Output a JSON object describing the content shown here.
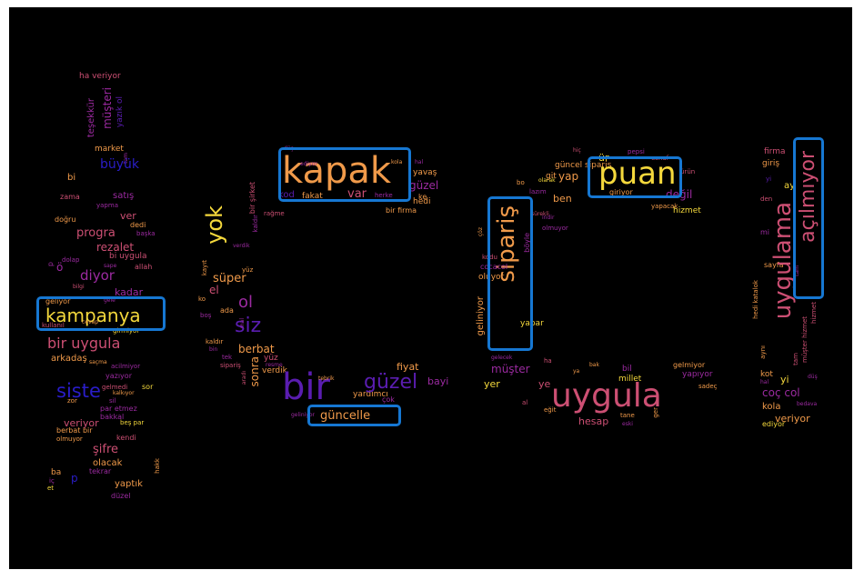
{
  "palette": {
    "background": "#000000",
    "highlight": "#1677d2",
    "yellow": "#f4d83c",
    "orange": "#f09a4a",
    "pink": "#cc4f73",
    "magenta": "#9b2aa0",
    "purple": "#5a1db0",
    "blue": "#2a1dc8"
  },
  "highlighted_words": [
    "kapak",
    "puan",
    "sipariş",
    "açılmıyor",
    "kampanya",
    "güncelle"
  ],
  "words": [
    {
      "text": "bir",
      "color": "#5a1db0"
    },
    {
      "text": "uygula",
      "color": "#cc4f73"
    },
    {
      "text": "kapak",
      "color": "#f09a4a"
    },
    {
      "text": "puan",
      "color": "#f4d83c"
    },
    {
      "text": "uygulama",
      "color": "#cc4f73"
    },
    {
      "text": "sipariş",
      "color": "#f09a4a"
    },
    {
      "text": "açılmıyor",
      "color": "#cc4f73"
    },
    {
      "text": "kampanya",
      "color": "#f4d83c"
    },
    {
      "text": "güzel",
      "color": "#5a1db0"
    },
    {
      "text": "yok",
      "color": "#f4d83c"
    },
    {
      "text": "siz",
      "color": "#5a1db0"
    },
    {
      "text": "siste",
      "color": "#2a1dc8"
    },
    {
      "text": "bir uygula",
      "color": "#cc4f73"
    },
    {
      "text": "güncelle",
      "color": "#f09a4a"
    },
    {
      "text": "ol",
      "color": "#9b2aa0"
    },
    {
      "text": "diyor",
      "color": "#9b2aa0"
    },
    {
      "text": "var",
      "color": "#cc4f73"
    },
    {
      "text": "ür",
      "color": "#f4d83c"
    },
    {
      "text": "yap",
      "color": "#f09a4a"
    },
    {
      "text": "ben",
      "color": "#f09a4a"
    },
    {
      "text": "müşter",
      "color": "#9b2aa0"
    },
    {
      "text": "müşteri",
      "color": "#9b2aa0"
    },
    {
      "text": "değil",
      "color": "#9b2aa0"
    },
    {
      "text": "hesap",
      "color": "#cc4f73"
    },
    {
      "text": "fiyat",
      "color": "#f09a4a"
    },
    {
      "text": "coç col",
      "color": "#9b2aa0"
    },
    {
      "text": "veriyor",
      "color": "#f09a4a"
    },
    {
      "text": "şifre",
      "color": "#cc4f73"
    },
    {
      "text": "kadar",
      "color": "#9b2aa0"
    },
    {
      "text": "rezalet",
      "color": "#cc4f73"
    },
    {
      "text": "progra",
      "color": "#cc4f73"
    },
    {
      "text": "süper",
      "color": "#f09a4a"
    },
    {
      "text": "sonra",
      "color": "#f09a4a"
    },
    {
      "text": "berbat",
      "color": "#f09a4a"
    },
    {
      "text": "el",
      "color": "#cc4f73"
    },
    {
      "text": "yer",
      "color": "#f4d83c"
    },
    {
      "text": "ye",
      "color": "#cc4f73"
    },
    {
      "text": "bayi",
      "color": "#9b2aa0"
    },
    {
      "text": "kod",
      "color": "#5a1db0"
    },
    {
      "text": "fakat",
      "color": "#f09a4a"
    },
    {
      "text": "bir firma",
      "color": "#f09a4a"
    },
    {
      "text": "hedi",
      "color": "#f09a4a"
    },
    {
      "text": "rağme",
      "color": "#f09a4a"
    },
    {
      "text": "yavaş",
      "color": "#f09a4a"
    },
    {
      "text": "ke",
      "color": "#9b2aa0"
    },
    {
      "text": "herke",
      "color": "#cc4f73"
    },
    {
      "text": "bir şirket",
      "color": "#cc4f73"
    },
    {
      "text": "ha veriyor",
      "color": "#9b2aa0"
    },
    {
      "text": "teşekkür",
      "color": "#cc4f73"
    },
    {
      "text": "yazık ol",
      "color": "#9b2aa0"
    },
    {
      "text": "market",
      "color": "#5a1db0"
    },
    {
      "text": "büyük",
      "color": "#f09a4a"
    },
    {
      "text": "bi",
      "color": "#2a1dc8"
    },
    {
      "text": "zama",
      "color": "#f09a4a"
    },
    {
      "text": "satış",
      "color": "#cc4f73"
    },
    {
      "text": "yapma",
      "color": "#9b2aa0"
    },
    {
      "text": "ver",
      "color": "#cc4f73"
    },
    {
      "text": "doğru",
      "color": "#f09a4a"
    },
    {
      "text": "dedi",
      "color": "#f09a4a"
    },
    {
      "text": "başka",
      "color": "#9b2aa0"
    },
    {
      "text": "bi uygula",
      "color": "#cc4f73"
    },
    {
      "text": "allah",
      "color": "#cc4f73"
    },
    {
      "text": "ö",
      "color": "#9b2aa0"
    },
    {
      "text": "geliyor",
      "color": "#f09a4a"
    },
    {
      "text": "arkadaş",
      "color": "#f09a4a"
    },
    {
      "text": "yazıyor",
      "color": "#9b2aa0"
    },
    {
      "text": "lütfe",
      "color": "#cc4f73"
    },
    {
      "text": "olacak",
      "color": "#f09a4a"
    },
    {
      "text": "yaptık",
      "color": "#f09a4a"
    },
    {
      "text": "düzel",
      "color": "#9b2aa0"
    },
    {
      "text": "kendi",
      "color": "#cc4f73"
    },
    {
      "text": "tekrar",
      "color": "#9b2aa0"
    },
    {
      "text": "beş par",
      "color": "#f4d83c"
    },
    {
      "text": "kullanıl",
      "color": "#cc4f73"
    },
    {
      "text": "acilmiyor",
      "color": "#9b2aa0"
    },
    {
      "text": "kalkıyor",
      "color": "#f09a4a"
    },
    {
      "text": "sil",
      "color": "#9b2aa0"
    },
    {
      "text": "sor",
      "color": "#f4d83c"
    },
    {
      "text": "zor",
      "color": "#f09a4a"
    },
    {
      "text": "par etmez",
      "color": "#9b2aa0"
    },
    {
      "text": "bakkal",
      "color": "#9b2aa0"
    },
    {
      "text": "berbat bir",
      "color": "#f09a4a"
    },
    {
      "text": "olmuyor",
      "color": "#f09a4a"
    },
    {
      "text": "hakk",
      "color": "#f09a4a"
    },
    {
      "text": "ba",
      "color": "#f09a4a"
    },
    {
      "text": "iç",
      "color": "#9b2aa0"
    },
    {
      "text": "et",
      "color": "#f4d83c"
    },
    {
      "text": "p",
      "color": "#2a1dc8"
    },
    {
      "text": "dolap",
      "color": "#9b2aa0"
    },
    {
      "text": "bilgi",
      "color": "#9b2aa0"
    },
    {
      "text": "gelmedi",
      "color": "#9b2aa0"
    },
    {
      "text": "saçma",
      "color": "#9b2aa0"
    },
    {
      "text": "cevap",
      "color": "#cc4f73"
    },
    {
      "text": "sape",
      "color": "#9b2aa0"
    },
    {
      "text": "gele",
      "color": "#f09a4a"
    },
    {
      "text": "girmiyor",
      "color": "#9b2aa0"
    },
    {
      "text": "geç",
      "color": "#f4d83c"
    },
    {
      "text": "dünya",
      "color": "#f09a4a"
    },
    {
      "text": "kayıt",
      "color": "#f09a4a"
    },
    {
      "text": "ko",
      "color": "#9b2aa0"
    },
    {
      "text": "boş",
      "color": "#f09a4a"
    },
    {
      "text": "ada",
      "color": "#f09a4a"
    },
    {
      "text": "kaldır",
      "color": "#9b2aa0"
    },
    {
      "text": "bin",
      "color": "#cc4f73"
    },
    {
      "text": "sipariş",
      "color": "#9b2aa0"
    },
    {
      "text": "tek",
      "color": "#cc4f73"
    },
    {
      "text": "yüz",
      "color": "#f09a4a"
    },
    {
      "text": "verdik",
      "color": "#f09a4a"
    },
    {
      "text": "mal",
      "color": "#9b2aa0"
    },
    {
      "text": "resme",
      "color": "#9b2aa0"
    },
    {
      "text": "aradı",
      "color": "#9b2aa0"
    },
    {
      "text": "tebrik",
      "color": "#cc4f73"
    },
    {
      "text": "yardımcı",
      "color": "#f09a4a"
    },
    {
      "text": "çok",
      "color": "#f09a4a"
    },
    {
      "text": "geliniyor",
      "color": "#9b2aa0"
    },
    {
      "text": "oluyor",
      "color": "#9b2aa0"
    },
    {
      "text": "cocacol",
      "color": "#f09a4a"
    },
    {
      "text": "kodu",
      "color": "#f09a4a"
    },
    {
      "text": "çöz",
      "color": "#9b2aa0"
    },
    {
      "text": "yapar",
      "color": "#cc4f73"
    },
    {
      "text": "böyle",
      "color": "#f09a4a"
    },
    {
      "text": "bo",
      "color": "#f4d83c"
    },
    {
      "text": "güncel siparis",
      "color": "#9b2aa0"
    },
    {
      "text": "git",
      "color": "#f09a4a"
    },
    {
      "text": "olarak",
      "color": "#f09a4a"
    },
    {
      "text": "sürekli",
      "color": "#f09a4a"
    },
    {
      "text": "lazım",
      "color": "#f4d83c"
    },
    {
      "text": "indir",
      "color": "#cc4f73"
    },
    {
      "text": "giriyor",
      "color": "#9b2aa0"
    },
    {
      "text": "hiç",
      "color": "#9b2aa0"
    },
    {
      "text": "pepsi",
      "color": "#f09a4a"
    },
    {
      "text": "esnaf",
      "color": "#cc4f73"
    },
    {
      "text": "ürün",
      "color": "#9b2aa0"
    },
    {
      "text": "yapacak",
      "color": "#cc4f73"
    },
    {
      "text": "hizmet",
      "color": "#cc4f73"
    },
    {
      "text": "ha",
      "color": "#f09a4a"
    },
    {
      "text": "ya",
      "color": "#f4d83c"
    },
    {
      "text": "bak",
      "color": "#cc4f73"
    },
    {
      "text": "millet",
      "color": "#f09a4a"
    },
    {
      "text": "gelecek",
      "color": "#f09a4a"
    },
    {
      "text": "al",
      "color": "#f4d83c"
    },
    {
      "text": "eğit",
      "color": "#9b2aa0"
    },
    {
      "text": "tane",
      "color": "#cc4f73"
    },
    {
      "text": "eski",
      "color": "#f09a4a"
    },
    {
      "text": "bil",
      "color": "#f09a4a"
    },
    {
      "text": "gelmiyor",
      "color": "#9b2aa0"
    },
    {
      "text": "yapıyor",
      "color": "#9b2aa0"
    },
    {
      "text": "sadeç",
      "color": "#f09a4a"
    },
    {
      "text": "giremiyor",
      "color": "#9b2aa0"
    },
    {
      "text": "adet",
      "color": "#f09a4a"
    },
    {
      "text": "ger",
      "color": "#f09a4a"
    },
    {
      "text": "firma",
      "color": "#cc4f73"
    },
    {
      "text": "giriş",
      "color": "#f09a4a"
    },
    {
      "text": "ay",
      "color": "#f4d83c"
    },
    {
      "text": "den",
      "color": "#cc4f73"
    },
    {
      "text": "sayfa",
      "color": "#f09a4a"
    },
    {
      "text": "mi",
      "color": "#9b2aa0"
    },
    {
      "text": "hedi katalok",
      "color": "#f09a4a"
    },
    {
      "text": "hizmet",
      "color": "#cc4f73"
    },
    {
      "text": "müşter hizmet",
      "color": "#cc4f73"
    },
    {
      "text": "aynı",
      "color": "#f09a4a"
    },
    {
      "text": "kot",
      "color": "#f09a4a"
    },
    {
      "text": "yi",
      "color": "#f4d83c"
    },
    {
      "text": "tam",
      "color": "#cc4f73"
    },
    {
      "text": "düş",
      "color": "#9b2aa0"
    },
    {
      "text": "hal",
      "color": "#9b2aa0"
    },
    {
      "text": "kola",
      "color": "#f09a4a"
    },
    {
      "text": "ediyor",
      "color": "#f4d83c"
    },
    {
      "text": "bedava",
      "color": "#9b2aa0"
    },
    {
      "text": "ola",
      "color": "#5a1db0"
    },
    {
      "text": "kullanıl diyor",
      "color": "#9b2aa0"
    },
    {
      "text": "güncellemegünce",
      "color": "#9b2aa0"
    },
    {
      "text": "okuyor",
      "color": "#9b2aa0"
    },
    {
      "text": "sıfır",
      "color": "#f09a4a"
    },
    {
      "text": "eder",
      "color": "#9b2aa0"
    }
  ]
}
